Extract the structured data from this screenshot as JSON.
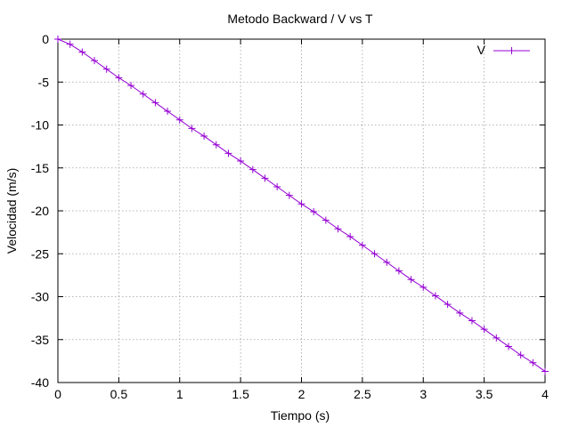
{
  "chart_data": {
    "type": "line",
    "title": "Metodo Backward / V vs T",
    "xlabel": "Tiempo (s)",
    "ylabel": "Velocidad (m/s)",
    "xlim": [
      0,
      4
    ],
    "ylim": [
      -40,
      0
    ],
    "xticks": [
      "0",
      "0.5",
      "1",
      "1.5",
      "2",
      "2.5",
      "3",
      "3.5",
      "4"
    ],
    "yticks": [
      "0",
      "-5",
      "-10",
      "-15",
      "-20",
      "-25",
      "-30",
      "-35",
      "-40"
    ],
    "grid": true,
    "legend_position": "top-right",
    "series": [
      {
        "name": "V",
        "color": "#9400d3",
        "marker": "plus",
        "x": [
          0,
          0.1,
          0.2,
          0.3,
          0.4,
          0.5,
          0.6,
          0.7,
          0.8,
          0.9,
          1.0,
          1.1,
          1.2,
          1.3,
          1.4,
          1.5,
          1.6,
          1.7,
          1.8,
          1.9,
          2.0,
          2.1,
          2.2,
          2.3,
          2.4,
          2.5,
          2.6,
          2.7,
          2.8,
          2.9,
          3.0,
          3.1,
          3.2,
          3.3,
          3.4,
          3.5,
          3.6,
          3.7,
          3.8,
          3.9,
          4.0
        ],
        "y": [
          0,
          -0.6,
          -1.5,
          -2.5,
          -3.5,
          -4.5,
          -5.4,
          -6.4,
          -7.4,
          -8.4,
          -9.4,
          -10.4,
          -11.3,
          -12.3,
          -13.3,
          -14.2,
          -15.2,
          -16.2,
          -17.2,
          -18.2,
          -19.2,
          -20.1,
          -21.1,
          -22.1,
          -23.0,
          -24.0,
          -25.0,
          -26.0,
          -27.0,
          -28.0,
          -28.9,
          -29.9,
          -30.9,
          -31.9,
          -32.8,
          -33.8,
          -34.8,
          -35.8,
          -36.8,
          -37.7,
          -38.7
        ]
      }
    ]
  }
}
